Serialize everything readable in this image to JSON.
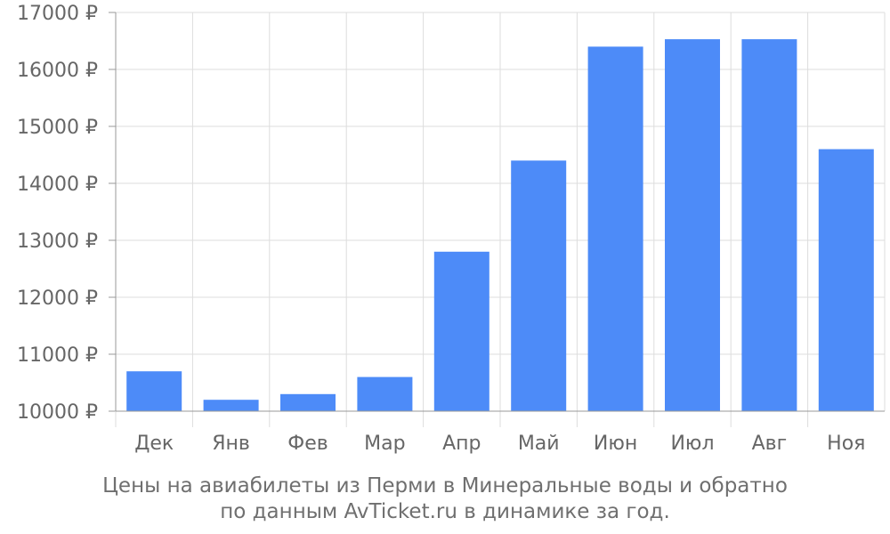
{
  "chart_data": {
    "type": "bar",
    "categories": [
      "Дек",
      "Янв",
      "Фев",
      "Мар",
      "Апр",
      "Май",
      "Июн",
      "Июл",
      "Авг",
      "Ноя"
    ],
    "values": [
      10700,
      10200,
      10300,
      10600,
      12800,
      14400,
      16400,
      16530,
      16530,
      14600
    ],
    "ylim": [
      10000,
      17000
    ],
    "yticks": [
      10000,
      11000,
      12000,
      13000,
      14000,
      15000,
      16000,
      17000
    ],
    "ytick_suffix": " ₽",
    "grid": true,
    "bar_color": "#4d8bf8",
    "grid_color": "#dddddd",
    "axis_color": "#999999",
    "text_color": "#666666"
  },
  "caption": {
    "line1": "Цены на авиабилеты из Перми в Минеральные воды и обратно",
    "line2": "по данным AvTicket.ru в динамике за год."
  }
}
